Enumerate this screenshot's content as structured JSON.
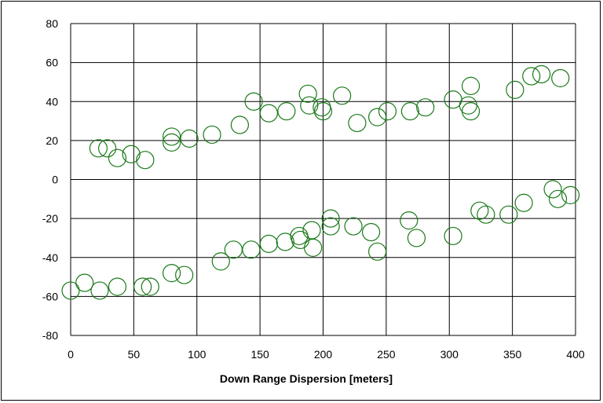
{
  "chart_data": {
    "type": "scatter",
    "title": "",
    "xlabel": "Down Range Dispersion [meters]",
    "ylabel": "",
    "xlim": [
      0,
      400
    ],
    "ylim": [
      -80,
      80
    ],
    "x_ticks": [
      0,
      50,
      100,
      150,
      200,
      250,
      300,
      350,
      400
    ],
    "y_ticks": [
      80,
      60,
      40,
      20,
      0,
      -20,
      -40,
      -60,
      -80
    ],
    "grid": true,
    "legend": "none",
    "marker": "open-circle",
    "marker_color": "#1a7a1a",
    "grid_color": "#000000",
    "series": [
      {
        "points": [
          [
            22,
            16
          ],
          [
            29,
            16
          ],
          [
            37,
            11
          ],
          [
            48,
            13
          ],
          [
            59,
            10
          ],
          [
            80,
            22
          ],
          [
            80,
            19
          ],
          [
            94,
            21
          ],
          [
            112,
            23
          ],
          [
            134,
            28
          ],
          [
            145,
            40
          ],
          [
            157,
            34
          ],
          [
            171,
            35
          ],
          [
            188,
            44
          ],
          [
            189,
            38
          ],
          [
            199,
            37
          ],
          [
            200,
            35
          ],
          [
            215,
            43
          ],
          [
            227,
            29
          ],
          [
            243,
            32
          ],
          [
            251,
            35
          ],
          [
            269,
            35
          ],
          [
            281,
            37
          ],
          [
            303,
            41
          ],
          [
            315,
            38
          ],
          [
            317,
            48
          ],
          [
            317,
            35
          ],
          [
            352,
            46
          ],
          [
            365,
            53
          ],
          [
            373,
            54
          ],
          [
            388,
            52
          ]
        ]
      },
      {
        "points": [
          [
            0,
            -57
          ],
          [
            11,
            -53
          ],
          [
            23,
            -57
          ],
          [
            37,
            -55
          ],
          [
            57,
            -55
          ],
          [
            63,
            -55
          ],
          [
            80,
            -48
          ],
          [
            90,
            -49
          ],
          [
            119,
            -42
          ],
          [
            129,
            -36
          ],
          [
            143,
            -36
          ],
          [
            157,
            -33
          ],
          [
            170,
            -32
          ],
          [
            181,
            -29
          ],
          [
            182,
            -31
          ],
          [
            191,
            -26
          ],
          [
            192,
            -35
          ],
          [
            206,
            -20
          ],
          [
            206,
            -24
          ],
          [
            224,
            -24
          ],
          [
            238,
            -27
          ],
          [
            243,
            -37
          ],
          [
            268,
            -21
          ],
          [
            274,
            -30
          ],
          [
            303,
            -29
          ],
          [
            324,
            -16
          ],
          [
            329,
            -18
          ],
          [
            347,
            -18
          ],
          [
            359,
            -12
          ],
          [
            382,
            -5
          ],
          [
            386,
            -10
          ],
          [
            396,
            -8
          ]
        ]
      }
    ]
  }
}
